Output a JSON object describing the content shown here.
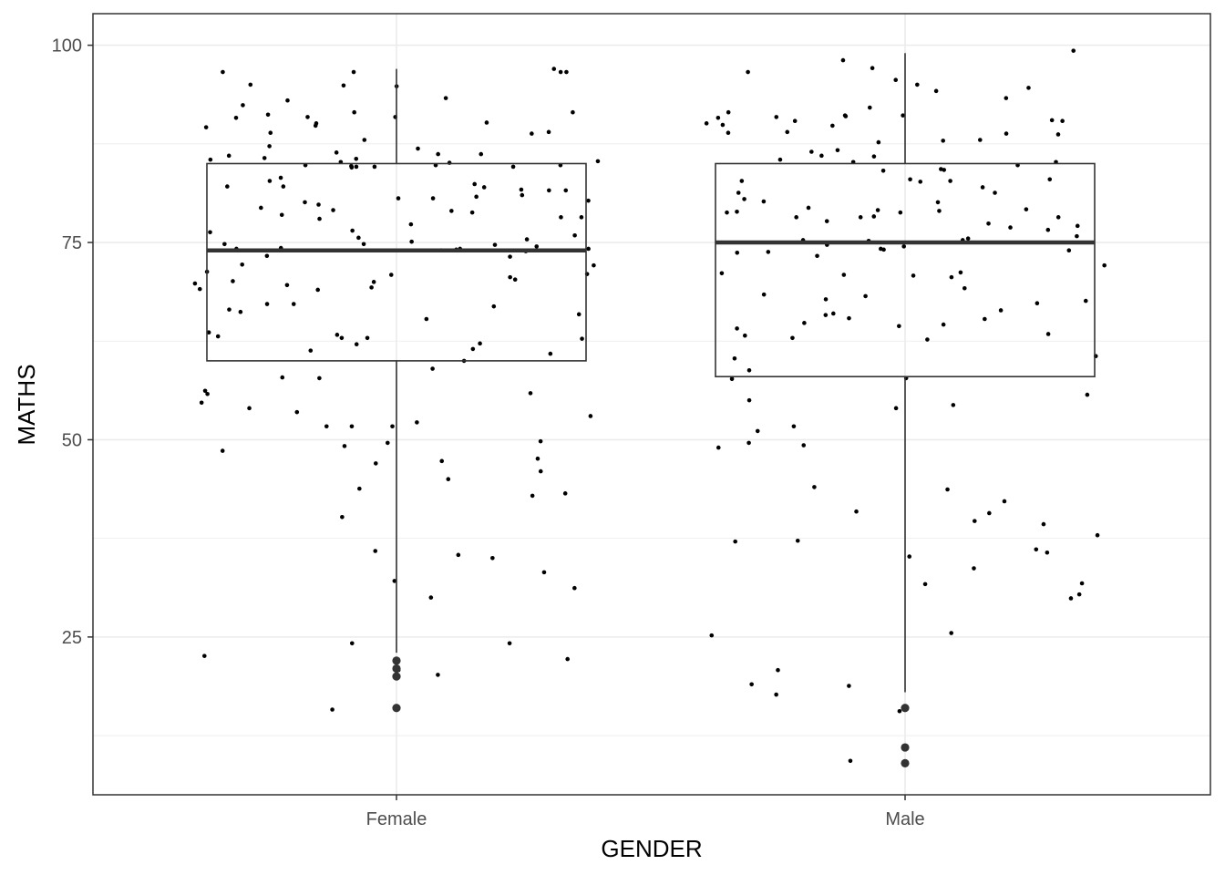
{
  "chart_data": {
    "type": "boxplot",
    "xlabel": "GENDER",
    "ylabel": "MATHS",
    "ylim": [
      5,
      104
    ],
    "yticks": [
      25,
      50,
      75,
      100
    ],
    "grid": true,
    "legend": "none",
    "categories": [
      "Female",
      "Male"
    ],
    "boxes": [
      {
        "category": "Female",
        "whisker_low": 23,
        "q1": 60,
        "median": 74,
        "q3": 85,
        "whisker_high": 97,
        "outliers": [
          22,
          21,
          20,
          16
        ]
      },
      {
        "category": "Male",
        "whisker_low": 18,
        "q1": 58,
        "median": 75,
        "q3": 85,
        "whisker_high": 99,
        "outliers": [
          16,
          11,
          9
        ]
      }
    ],
    "jitter_points": [
      {
        "category": "Female",
        "values": [
          97,
          96.6,
          96.6,
          96.6,
          96.6,
          95,
          94.9,
          94.8,
          93.3,
          93,
          92.4,
          91.5,
          91.5,
          91.2,
          90.9,
          90.9,
          90.8,
          90.2,
          90.1,
          89.8,
          89.6,
          89,
          88.9,
          88.8,
          88,
          87.2,
          86.9,
          86.4,
          86.2,
          86.2,
          86,
          85.7,
          85.6,
          85.5,
          85.3,
          85.2,
          85.1,
          84.8,
          84.8,
          84.8,
          84.7,
          84.6,
          84.6,
          84.6,
          84.6,
          84.5,
          83.2,
          82.8,
          82.4,
          82.1,
          82.1,
          82,
          81.7,
          81.6,
          81.6,
          81,
          80.8,
          80.6,
          80.6,
          80.3,
          80.1,
          79.8,
          79.4,
          79.1,
          79,
          78.8,
          78.5,
          78.2,
          78.2,
          78,
          77.3,
          76.5,
          76.3,
          75.9,
          75.6,
          75.4,
          75.1,
          74.8,
          74.8,
          74.7,
          74.5,
          74.3,
          74.2,
          74.2,
          74.2,
          74.1,
          74,
          73.9,
          73.3,
          73.2,
          72.2,
          72.1,
          71.3,
          71,
          70.9,
          70.6,
          70.3,
          70.1,
          70,
          69.8,
          69.6,
          69.3,
          69.1,
          69,
          67.2,
          67.2,
          66.9,
          66.5,
          66.2,
          65.9,
          65.3,
          63.6,
          63.3,
          63.1,
          62.9,
          62.9,
          62.8,
          62.2,
          62.1,
          61.5,
          61.3,
          60.9,
          60,
          59,
          57.9,
          57.8,
          56.2,
          55.9,
          55.8,
          54.7,
          54,
          53.5,
          53,
          52.2,
          51.7,
          51.7,
          51.7,
          49.8,
          49.6,
          49.2,
          48.6,
          47.6,
          47.3,
          47,
          46,
          45,
          43.8,
          43.2,
          42.9,
          40.2,
          35.9,
          35.4,
          35,
          33.2,
          32.1,
          31.2,
          30,
          24.2,
          24.2,
          22.6,
          22.2,
          20.8,
          20.2,
          15.8
        ]
      },
      {
        "category": "Male",
        "values": [
          99.3,
          98.1,
          97.1,
          96.6,
          95.6,
          95,
          94.6,
          94.2,
          93.3,
          92.1,
          91.5,
          91.1,
          91.1,
          91,
          90.9,
          90.8,
          90.5,
          90.4,
          90.4,
          90.1,
          89.9,
          89.8,
          89,
          88.9,
          88.8,
          88.7,
          88,
          87.9,
          87.7,
          86.7,
          86.5,
          86,
          85.9,
          85.5,
          85.2,
          85.2,
          84.8,
          84.3,
          84.2,
          84.1,
          83,
          83,
          82.8,
          82.8,
          82.7,
          82,
          81.3,
          81.3,
          80.5,
          80.2,
          80.1,
          79.4,
          79.2,
          79.1,
          79,
          78.9,
          78.8,
          78.8,
          78.3,
          78.2,
          78.2,
          78.2,
          77.7,
          77.4,
          77.1,
          76.9,
          76.6,
          75.8,
          75.5,
          75.3,
          75.3,
          75.2,
          74.7,
          74.5,
          74.2,
          74.1,
          74,
          73.8,
          73.7,
          73.3,
          72.1,
          71.2,
          71.1,
          70.9,
          70.8,
          70.6,
          69.2,
          68.4,
          68.2,
          67.8,
          67.6,
          67.3,
          66.4,
          66,
          65.8,
          65.4,
          65.3,
          64.8,
          64.6,
          64.4,
          64.1,
          63.4,
          63.2,
          62.9,
          62.7,
          60.6,
          60.3,
          58.8,
          57.8,
          57.7,
          55.7,
          55,
          54.4,
          54,
          51.7,
          51.1,
          49.6,
          49.3,
          49,
          44,
          43.7,
          42.2,
          40.9,
          40.7,
          39.7,
          39.3,
          37.9,
          37.2,
          37.1,
          36.1,
          35.7,
          35.2,
          33.7,
          31.8,
          31.7,
          30.4,
          29.9,
          25.5,
          25.2,
          20.8,
          19,
          18.8,
          17.7,
          15.6,
          9.3
        ]
      }
    ]
  }
}
